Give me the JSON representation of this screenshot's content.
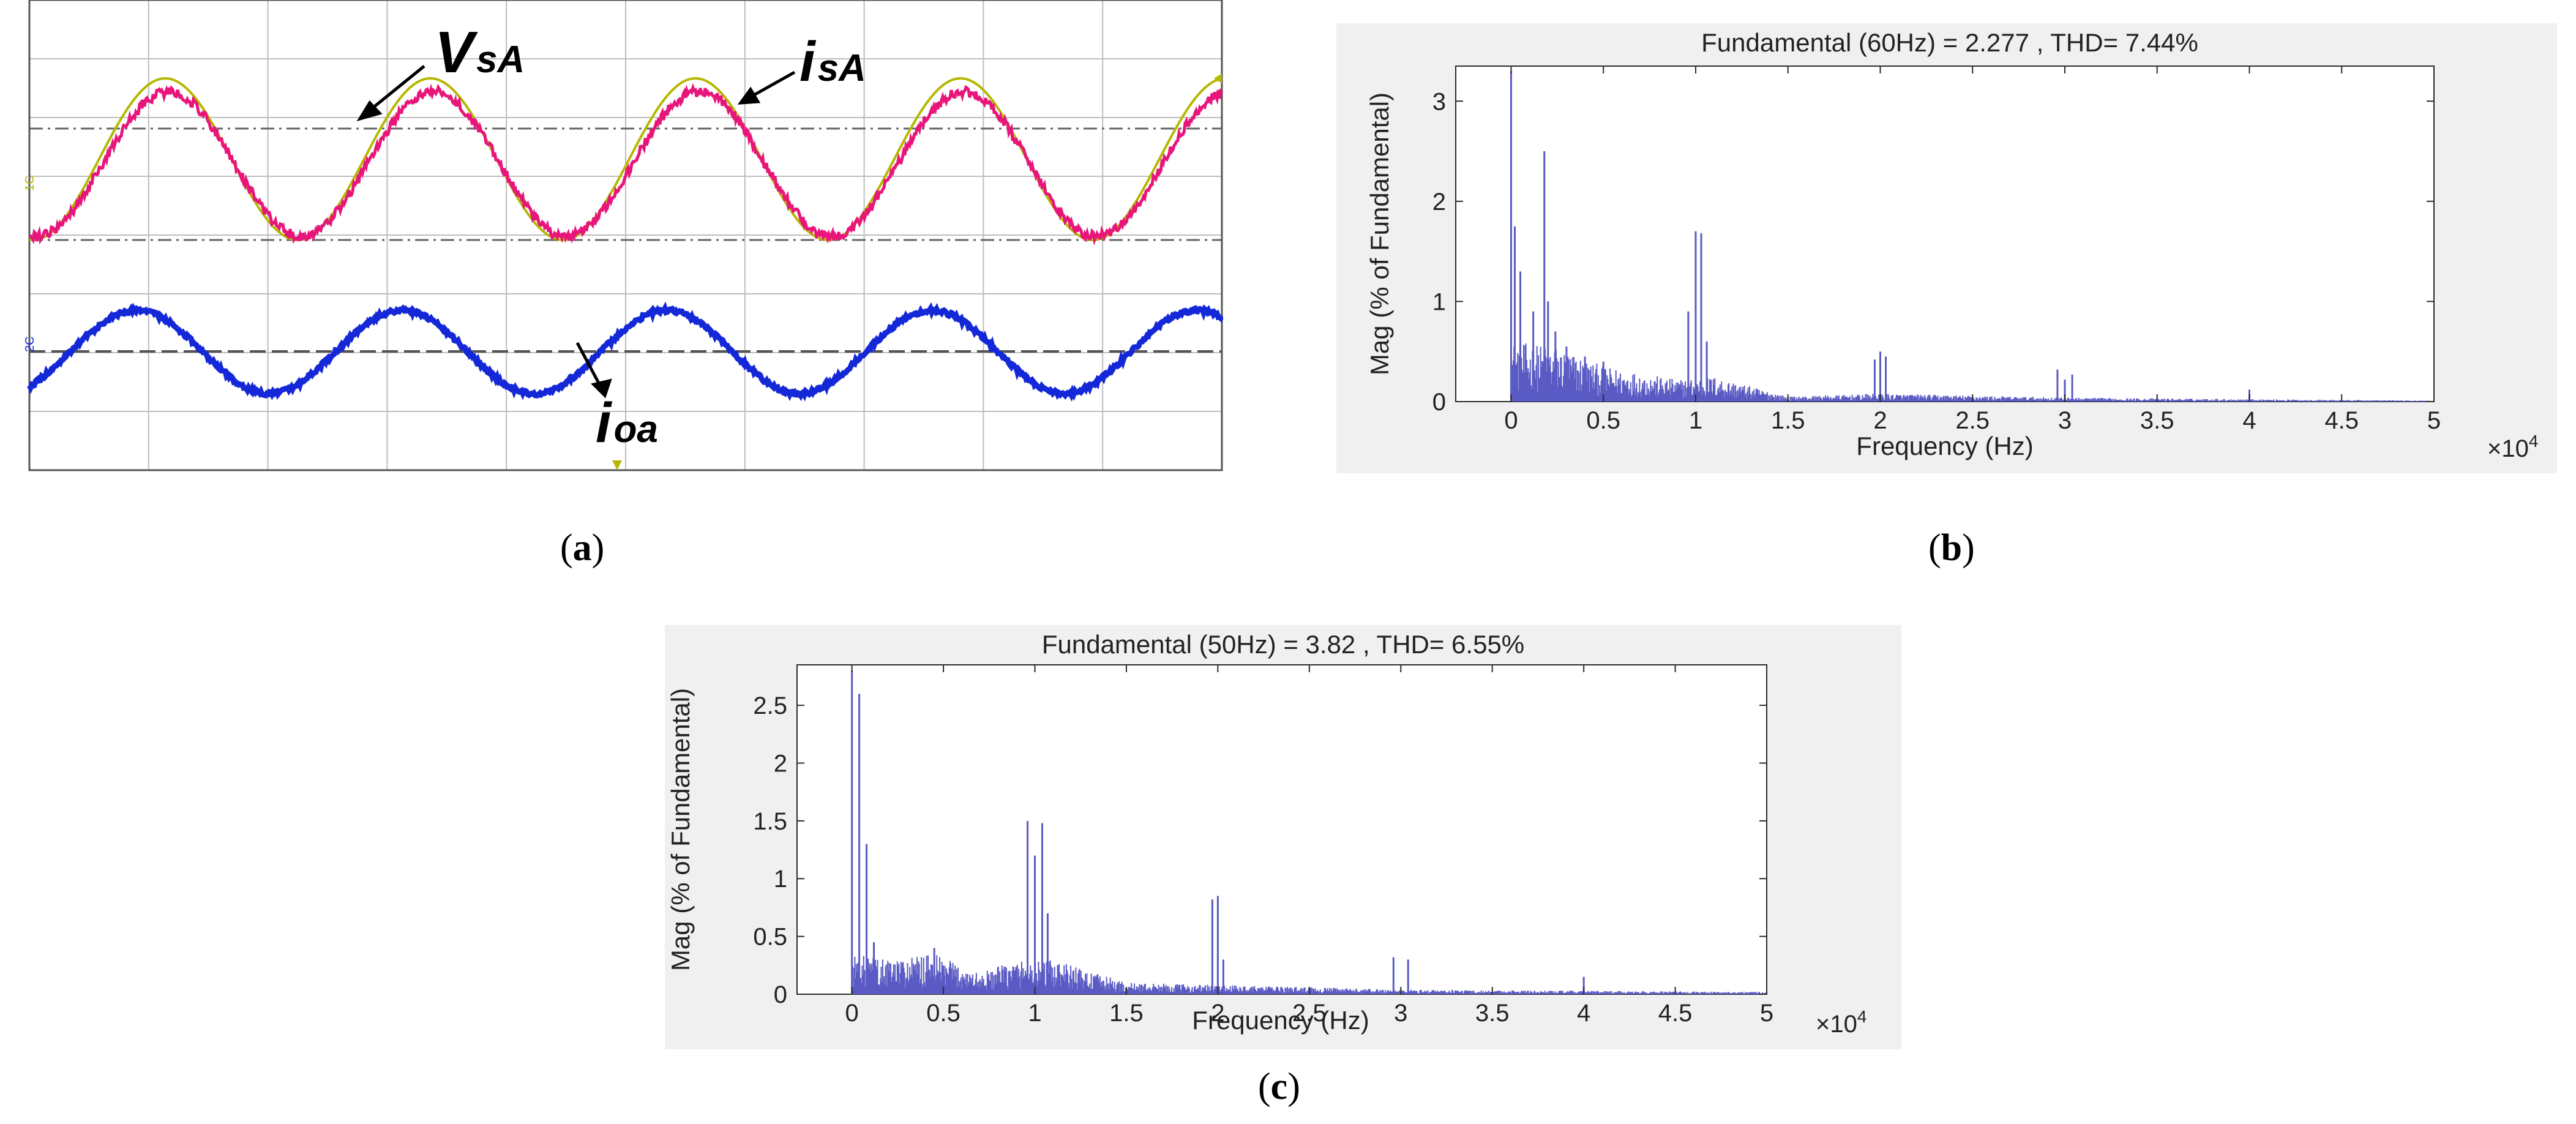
{
  "panels": {
    "a": {
      "label_open": "(",
      "label_letter": "a",
      "label_close": ")"
    },
    "b": {
      "label_open": "(",
      "label_letter": "b",
      "label_close": ")"
    },
    "c": {
      "label_open": "(",
      "label_letter": "c",
      "label_close": ")"
    }
  },
  "oscilloscope": {
    "labels": {
      "vsa_main": "V",
      "vsa_sub": "sA",
      "isa_main": "i",
      "isa_sub": "sA",
      "ioa_main": "i",
      "ioa_sub": "oa"
    },
    "channel_markers": {
      "ch1": "1C",
      "ch2": "2C"
    },
    "colors": {
      "vsa": "#b5b800",
      "isa": "#e8157a",
      "ioa": "#1428d8",
      "grid": "#bdbdbd"
    }
  },
  "chart_data": [
    {
      "id": "b",
      "type": "bar",
      "title": "Fundamental (60Hz) = 2.277 , THD= 7.44%",
      "xlabel": "Frequency (Hz)",
      "ylabel": "Mag (% of Fundamental)",
      "x_multiplier": "×10",
      "x_multiplier_exp": "4",
      "xlim": [
        -0.3,
        5.0
      ],
      "ylim": [
        0,
        3.35
      ],
      "xticks": [
        0,
        0.5,
        1,
        1.5,
        2,
        2.5,
        3,
        3.5,
        4,
        4.5,
        5
      ],
      "xtick_labels": [
        "0",
        "0.5",
        "1",
        "1.5",
        "2",
        "2.5",
        "3",
        "3.5",
        "4",
        "4.5",
        "5"
      ],
      "yticks": [
        0,
        1,
        2,
        3
      ],
      "ytick_labels": [
        "0",
        "1",
        "2",
        "3"
      ],
      "bar_color": "#5a5ac4",
      "peaks": [
        {
          "x": 0.0,
          "y": 3.3
        },
        {
          "x": 0.02,
          "y": 1.75
        },
        {
          "x": 0.05,
          "y": 1.3
        },
        {
          "x": 0.12,
          "y": 0.9
        },
        {
          "x": 0.18,
          "y": 2.5
        },
        {
          "x": 0.2,
          "y": 1.0
        },
        {
          "x": 0.24,
          "y": 0.7
        },
        {
          "x": 0.3,
          "y": 0.55
        },
        {
          "x": 0.4,
          "y": 0.45
        },
        {
          "x": 0.5,
          "y": 0.4
        },
        {
          "x": 0.96,
          "y": 0.9
        },
        {
          "x": 1.0,
          "y": 1.7
        },
        {
          "x": 1.03,
          "y": 1.68
        },
        {
          "x": 1.06,
          "y": 0.6
        },
        {
          "x": 1.97,
          "y": 0.42
        },
        {
          "x": 2.0,
          "y": 0.5
        },
        {
          "x": 2.03,
          "y": 0.45
        },
        {
          "x": 2.96,
          "y": 0.32
        },
        {
          "x": 3.0,
          "y": 0.22
        },
        {
          "x": 3.04,
          "y": 0.27
        },
        {
          "x": 4.0,
          "y": 0.12
        }
      ],
      "noise_envelope": [
        {
          "x": 0.0,
          "y": 0.6
        },
        {
          "x": 0.25,
          "y": 0.55
        },
        {
          "x": 0.5,
          "y": 0.35
        },
        {
          "x": 0.9,
          "y": 0.22
        },
        {
          "x": 1.1,
          "y": 0.25
        },
        {
          "x": 1.5,
          "y": 0.05
        },
        {
          "x": 2.0,
          "y": 0.08
        },
        {
          "x": 3.0,
          "y": 0.04
        },
        {
          "x": 5.0,
          "y": 0.01
        }
      ]
    },
    {
      "id": "c",
      "type": "bar",
      "title": "Fundamental (50Hz) = 3.82 , THD= 6.55%",
      "xlabel": "Frequency (Hz)",
      "ylabel": "Mag (% of Fundamental)",
      "x_multiplier": "×10",
      "x_multiplier_exp": "4",
      "xlim": [
        -0.3,
        5.0
      ],
      "ylim": [
        0,
        2.85
      ],
      "xticks": [
        0,
        0.5,
        1,
        1.5,
        2,
        2.5,
        3,
        3.5,
        4,
        4.5,
        5
      ],
      "xtick_labels": [
        "0",
        "0.5",
        "1",
        "1.5",
        "2",
        "2.5",
        "3",
        "3.5",
        "4",
        "4.5",
        "5"
      ],
      "yticks": [
        0,
        0.5,
        1,
        1.5,
        2,
        2.5
      ],
      "ytick_labels": [
        "0",
        "0.5",
        "1",
        "1.5",
        "2",
        "2.5"
      ],
      "bar_color": "#5a5ac4",
      "peaks": [
        {
          "x": 0.0,
          "y": 2.8
        },
        {
          "x": 0.04,
          "y": 2.6
        },
        {
          "x": 0.08,
          "y": 1.3
        },
        {
          "x": 0.12,
          "y": 0.45
        },
        {
          "x": 0.45,
          "y": 0.4
        },
        {
          "x": 0.96,
          "y": 1.5
        },
        {
          "x": 1.0,
          "y": 1.2
        },
        {
          "x": 1.04,
          "y": 1.48
        },
        {
          "x": 1.07,
          "y": 0.7
        },
        {
          "x": 1.97,
          "y": 0.82
        },
        {
          "x": 2.0,
          "y": 0.85
        },
        {
          "x": 2.03,
          "y": 0.3
        },
        {
          "x": 2.96,
          "y": 0.32
        },
        {
          "x": 3.04,
          "y": 0.3
        },
        {
          "x": 4.0,
          "y": 0.15
        }
      ],
      "noise_envelope": [
        {
          "x": 0.0,
          "y": 0.35
        },
        {
          "x": 0.2,
          "y": 0.3
        },
        {
          "x": 0.45,
          "y": 0.35
        },
        {
          "x": 0.7,
          "y": 0.18
        },
        {
          "x": 0.9,
          "y": 0.3
        },
        {
          "x": 1.1,
          "y": 0.3
        },
        {
          "x": 1.5,
          "y": 0.1
        },
        {
          "x": 2.0,
          "y": 0.08
        },
        {
          "x": 3.0,
          "y": 0.04
        },
        {
          "x": 5.0,
          "y": 0.02
        }
      ]
    }
  ]
}
